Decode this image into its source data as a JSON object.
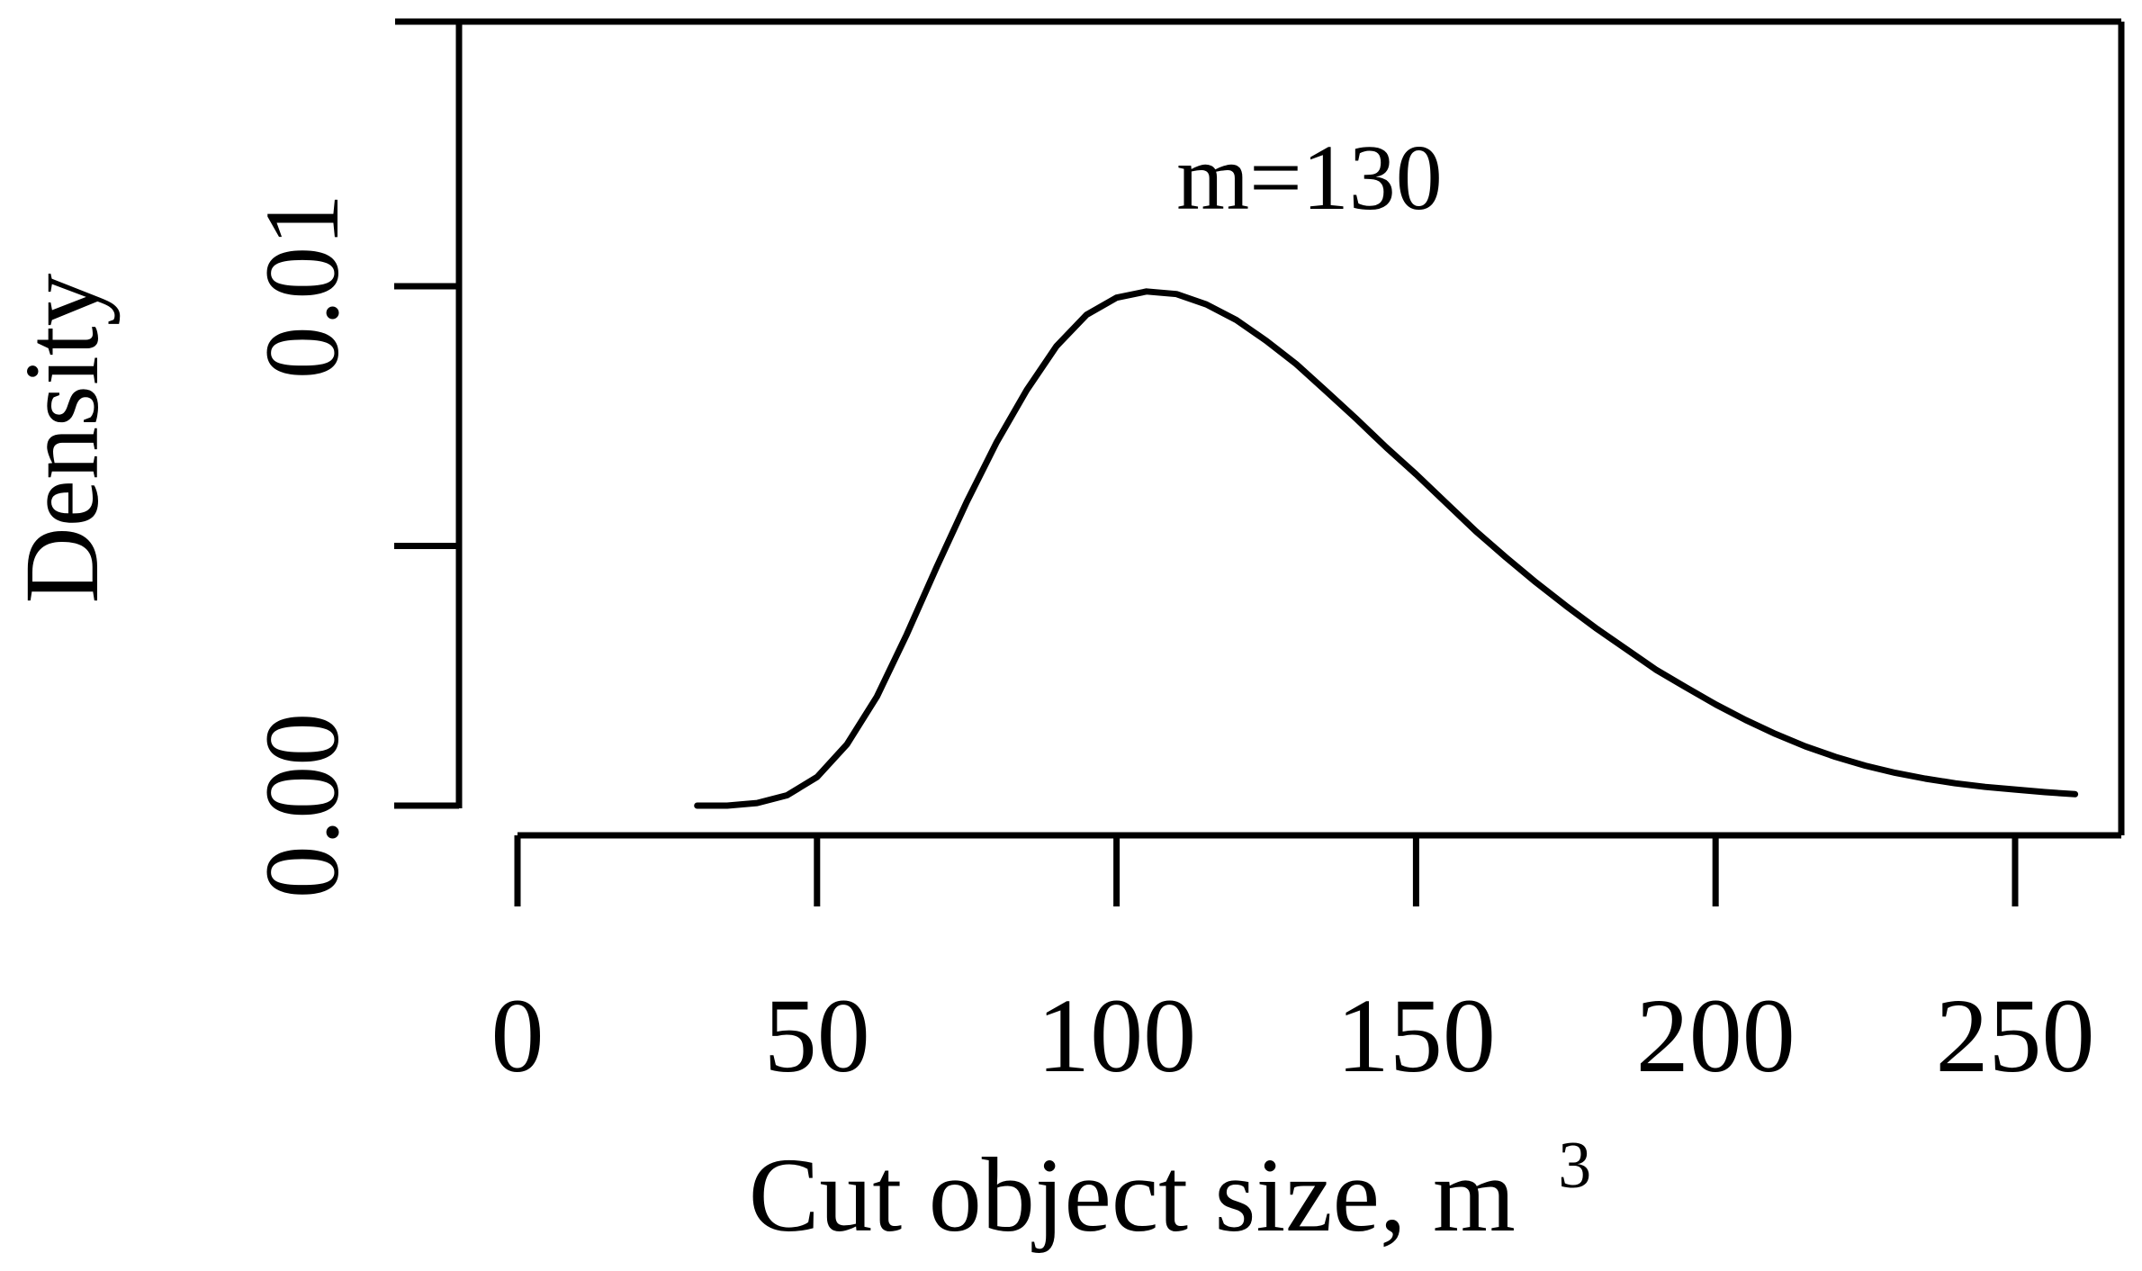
{
  "chart_data": {
    "type": "line",
    "title": "",
    "xlabel": "Cut object size, m",
    "xlabel_superscript": "3",
    "ylabel": "Density",
    "annotation": "m=130",
    "x_ticks": [
      0,
      50,
      100,
      150,
      200,
      250
    ],
    "x_tick_labels": [
      "0",
      "50",
      "100",
      "150",
      "200",
      "250"
    ],
    "y_ticks": [
      0,
      0.005,
      0.01
    ],
    "y_tick_labels": [
      "0.00",
      "",
      "0.01"
    ],
    "xlim": [
      0,
      260
    ],
    "ylim": [
      0,
      0.01
    ],
    "grid": false,
    "legend": "none",
    "line_color": "#000000",
    "series": [
      {
        "name": "",
        "x": [
          30,
          35,
          40,
          45,
          50,
          55,
          60,
          65,
          70,
          75,
          80,
          85,
          90,
          95,
          100,
          105,
          110,
          115,
          120,
          125,
          130,
          135,
          140,
          145,
          150,
          155,
          160,
          165,
          170,
          175,
          180,
          185,
          190,
          195,
          200,
          205,
          210,
          215,
          220,
          225,
          230,
          235,
          240,
          245,
          250,
          255,
          260
        ],
        "y": [
          0.0,
          0.0,
          5e-05,
          0.0002,
          0.00055,
          0.00118,
          0.0021,
          0.0033,
          0.0046,
          0.00585,
          0.007,
          0.008,
          0.00885,
          0.00945,
          0.00978,
          0.0099,
          0.00985,
          0.00965,
          0.00935,
          0.00895,
          0.0085,
          0.00798,
          0.00745,
          0.0069,
          0.00638,
          0.00583,
          0.00528,
          0.00478,
          0.0043,
          0.00385,
          0.00342,
          0.00302,
          0.00262,
          0.00228,
          0.00195,
          0.00165,
          0.00138,
          0.00114,
          0.00094,
          0.00077,
          0.00063,
          0.00052,
          0.00043,
          0.00036,
          0.00031,
          0.00026,
          0.00022
        ]
      }
    ]
  }
}
